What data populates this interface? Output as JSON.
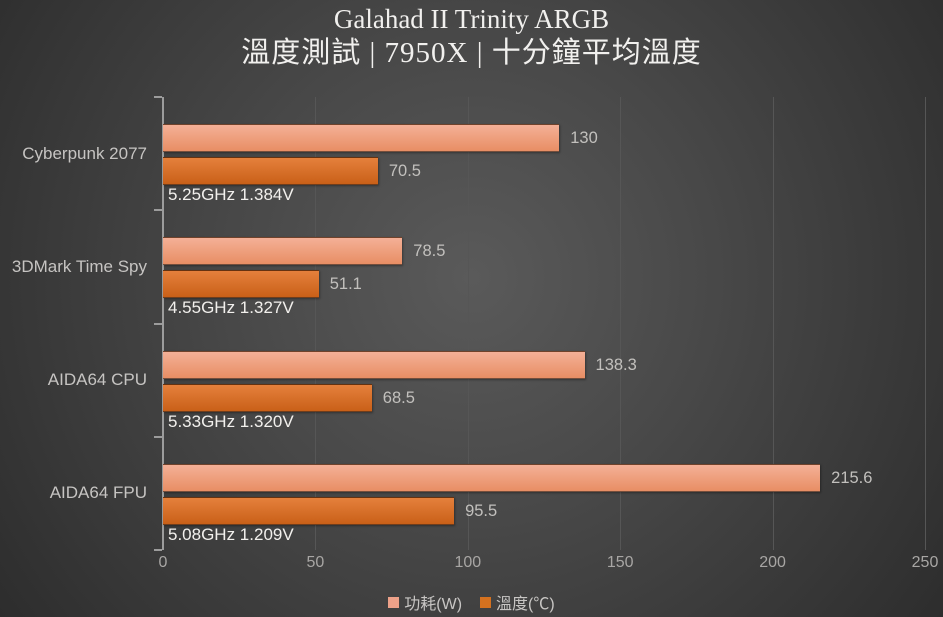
{
  "header": {
    "title": "Galahad II Trinity ARGB",
    "subtitle": "溫度測試 | 7950X | 十分鐘平均溫度"
  },
  "colors": {
    "background_center": "#5a5a5a",
    "background_edge": "#2d2d2d",
    "axis": "#9c9c9c",
    "gridline": "#565656",
    "power_bar_top": "#f4b097",
    "power_bar_bottom": "#e88e64",
    "temp_bar_top": "#e5803c",
    "temp_bar_bottom": "#c96018",
    "power_legend_swatch": "#eda189",
    "temp_legend_swatch": "#d4711f",
    "value_label_text": "#c2c0bd",
    "annotation_text": "#f2f0ed",
    "category_text": "#c6c4c2"
  },
  "chart_data": {
    "type": "bar",
    "orientation": "horizontal",
    "title": "Galahad II Trinity ARGB",
    "subtitle": "溫度測試 | 7950X | 十分鐘平均溫度",
    "categories": [
      "Cyberpunk 2077",
      "3DMark Time Spy",
      "AIDA64 CPU",
      "AIDA64 FPU"
    ],
    "series": [
      {
        "name": "功耗(W)",
        "values": [
          130,
          78.5,
          138.3,
          215.6
        ],
        "labels": [
          "130",
          "78.5",
          "138.3",
          "215.6"
        ]
      },
      {
        "name": "溫度(℃)",
        "values": [
          70.5,
          51.1,
          68.5,
          95.5
        ],
        "labels": [
          "70.5",
          "51.1",
          "68.5",
          "95.5"
        ]
      }
    ],
    "annotations": [
      "5.25GHz 1.384V",
      "4.55GHz 1.327V",
      "5.33GHz 1.320V",
      "5.08GHz 1.209V"
    ],
    "xlim": [
      0,
      250
    ],
    "x_ticks": [
      0,
      50,
      100,
      150,
      200,
      250
    ],
    "x_tick_labels": [
      "0",
      "50",
      "100",
      "150",
      "200",
      "250"
    ],
    "grid": true,
    "legend_position": "bottom"
  }
}
